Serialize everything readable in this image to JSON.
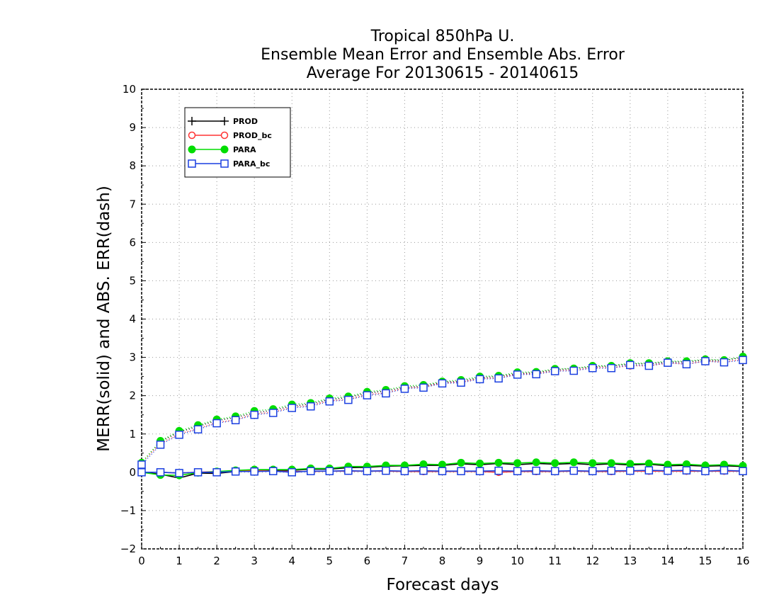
{
  "chart_data": {
    "type": "line",
    "title": [
      "Tropical 850hPa U.",
      "Ensemble Mean Error and Ensemble Abs. Error",
      "Average For 20130615 - 20140615"
    ],
    "xlabel": "Forecast days",
    "ylabel": "MERR(solid) and ABS. ERR(dash)",
    "xlim": [
      0,
      16
    ],
    "ylim": [
      -2,
      10
    ],
    "x_ticks": [
      "0",
      "1",
      "2",
      "3",
      "4",
      "5",
      "6",
      "7",
      "8",
      "9",
      "10",
      "11",
      "12",
      "13",
      "14",
      "15",
      "16"
    ],
    "y_ticks": [
      "-2",
      "-1",
      "0",
      "1",
      "2",
      "3",
      "4",
      "5",
      "6",
      "7",
      "8",
      "9",
      "10"
    ],
    "grid": true,
    "legend_position": "top-left",
    "x": [
      0,
      0.5,
      1,
      1.5,
      2,
      2.5,
      3,
      3.5,
      4,
      4.5,
      5,
      5.5,
      6,
      6.5,
      7,
      7.5,
      8,
      8.5,
      9,
      9.5,
      10,
      10.5,
      11,
      11.5,
      12,
      12.5,
      13,
      13.5,
      14,
      14.5,
      15,
      15.5,
      16
    ],
    "series": [
      {
        "name": "PROD",
        "color": "#000000",
        "marker": "plus",
        "merr": [
          0.0,
          -0.05,
          -0.15,
          -0.02,
          -0.03,
          0.02,
          0.05,
          0.05,
          0.05,
          0.08,
          0.08,
          0.12,
          0.13,
          0.16,
          0.17,
          0.18,
          0.18,
          0.22,
          0.2,
          0.23,
          0.2,
          0.23,
          0.21,
          0.23,
          0.2,
          0.22,
          0.19,
          0.21,
          0.17,
          0.18,
          0.16,
          0.17,
          0.15
        ],
        "abs_err": [
          0.25,
          0.8,
          1.05,
          1.2,
          1.35,
          1.43,
          1.55,
          1.62,
          1.73,
          1.78,
          1.9,
          1.95,
          2.07,
          2.12,
          2.22,
          2.25,
          2.35,
          2.38,
          2.47,
          2.5,
          2.58,
          2.6,
          2.68,
          2.7,
          2.76,
          2.77,
          2.83,
          2.83,
          2.88,
          2.88,
          2.93,
          2.92,
          3.0
        ]
      },
      {
        "name": "PROD_bc",
        "color": "#ff3333",
        "marker": "circle",
        "merr": [
          0.0,
          0.0,
          -0.02,
          0.0,
          0.02,
          0.03,
          0.05,
          0.03,
          0.02,
          0.02,
          0.03,
          0.03,
          0.03,
          0.03,
          0.02,
          0.02,
          0.02,
          0.02,
          0.02,
          0.0,
          0.02,
          0.02,
          0.02,
          0.03,
          0.02,
          0.02,
          0.03,
          0.03,
          0.03,
          0.03,
          0.03,
          0.03,
          0.03
        ],
        "abs_err": [
          0.25,
          0.75,
          1.0,
          1.14,
          1.3,
          1.37,
          1.52,
          1.57,
          1.7,
          1.74,
          1.87,
          1.9,
          2.03,
          2.07,
          2.2,
          2.22,
          2.33,
          2.35,
          2.45,
          2.46,
          2.56,
          2.57,
          2.65,
          2.66,
          2.73,
          2.73,
          2.78,
          2.78,
          2.85,
          2.83,
          2.9,
          2.88,
          2.95
        ]
      },
      {
        "name": "PARA",
        "color": "#00dd00",
        "marker": "filled-circle",
        "merr": [
          0.0,
          -0.07,
          -0.08,
          -0.01,
          0.02,
          0.05,
          0.07,
          0.07,
          0.07,
          0.1,
          0.1,
          0.15,
          0.15,
          0.18,
          0.18,
          0.21,
          0.2,
          0.25,
          0.23,
          0.25,
          0.24,
          0.26,
          0.24,
          0.26,
          0.24,
          0.24,
          0.22,
          0.23,
          0.2,
          0.21,
          0.18,
          0.2,
          0.17
        ],
        "abs_err": [
          0.25,
          0.82,
          1.08,
          1.23,
          1.38,
          1.46,
          1.6,
          1.65,
          1.77,
          1.81,
          1.93,
          1.98,
          2.1,
          2.15,
          2.25,
          2.28,
          2.37,
          2.41,
          2.5,
          2.52,
          2.61,
          2.62,
          2.7,
          2.71,
          2.78,
          2.78,
          2.85,
          2.85,
          2.9,
          2.9,
          2.95,
          2.93,
          3.02
        ]
      },
      {
        "name": "PARA_bc",
        "color": "#1a3fe0",
        "marker": "square",
        "merr": [
          0.0,
          0.0,
          -0.02,
          0.0,
          0.0,
          0.02,
          0.02,
          0.03,
          0.0,
          0.03,
          0.03,
          0.04,
          0.03,
          0.04,
          0.03,
          0.04,
          0.03,
          0.03,
          0.03,
          0.04,
          0.03,
          0.04,
          0.03,
          0.04,
          0.03,
          0.04,
          0.04,
          0.05,
          0.04,
          0.05,
          0.03,
          0.05,
          0.03
        ],
        "abs_err": [
          0.2,
          0.72,
          0.98,
          1.12,
          1.28,
          1.36,
          1.5,
          1.55,
          1.68,
          1.72,
          1.85,
          1.89,
          2.01,
          2.06,
          2.18,
          2.21,
          2.32,
          2.34,
          2.43,
          2.45,
          2.55,
          2.56,
          2.64,
          2.65,
          2.72,
          2.72,
          2.8,
          2.78,
          2.86,
          2.82,
          2.9,
          2.87,
          2.93
        ]
      }
    ]
  }
}
